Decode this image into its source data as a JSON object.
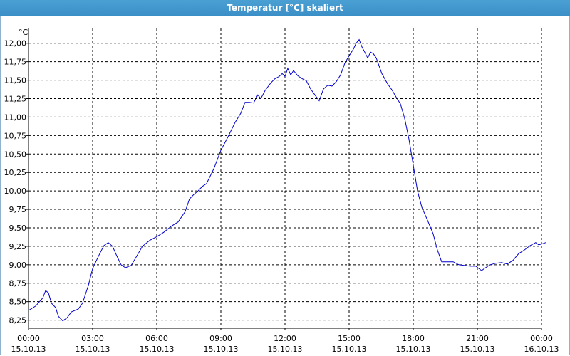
{
  "window": {
    "title": "Temperatur [°C] skaliert"
  },
  "chart_data": {
    "type": "line",
    "title": "Temperatur [°C] skaliert",
    "ylabel": "°C",
    "xlabel": "",
    "ylim": [
      8.14,
      12.2
    ],
    "grid": true,
    "y_ticks": [
      "12,00",
      "11,75",
      "11,50",
      "11,25",
      "11,00",
      "10,75",
      "10,50",
      "10,25",
      "10,00",
      "9,75",
      "9,50",
      "9,25",
      "9,00",
      "8,75",
      "8,50",
      "8,25"
    ],
    "y_tick_values": [
      12.0,
      11.75,
      11.5,
      11.25,
      11.0,
      10.75,
      10.5,
      10.25,
      10.0,
      9.75,
      9.5,
      9.25,
      9.0,
      8.75,
      8.5,
      8.25
    ],
    "x_ticks": [
      {
        "time": "00:00",
        "date": "15.10.13",
        "hours": 0
      },
      {
        "time": "03:00",
        "date": "15.10.13",
        "hours": 3
      },
      {
        "time": "06:00",
        "date": "15.10.13",
        "hours": 6
      },
      {
        "time": "09:00",
        "date": "15.10.13",
        "hours": 9
      },
      {
        "time": "12:00",
        "date": "15.10.13",
        "hours": 12
      },
      {
        "time": "15:00",
        "date": "15.10.13",
        "hours": 15
      },
      {
        "time": "18:00",
        "date": "15.10.13",
        "hours": 18
      },
      {
        "time": "21:00",
        "date": "15.10.13",
        "hours": 21
      },
      {
        "time": "00:00",
        "date": "16.10.13",
        "hours": 24
      }
    ],
    "xlim_hours": [
      0,
      24
    ],
    "series": [
      {
        "color": "#0000cc",
        "points": [
          [
            0.0,
            8.38
          ],
          [
            0.33,
            8.44
          ],
          [
            0.67,
            8.55
          ],
          [
            0.8,
            8.65
          ],
          [
            0.93,
            8.62
          ],
          [
            1.07,
            8.48
          ],
          [
            1.27,
            8.42
          ],
          [
            1.4,
            8.3
          ],
          [
            1.6,
            8.24
          ],
          [
            1.8,
            8.28
          ],
          [
            2.0,
            8.36
          ],
          [
            2.33,
            8.4
          ],
          [
            2.53,
            8.48
          ],
          [
            2.8,
            8.72
          ],
          [
            3.0,
            8.95
          ],
          [
            3.33,
            9.15
          ],
          [
            3.53,
            9.26
          ],
          [
            3.73,
            9.3
          ],
          [
            3.93,
            9.25
          ],
          [
            4.13,
            9.12
          ],
          [
            4.33,
            9.0
          ],
          [
            4.53,
            8.96
          ],
          [
            4.8,
            8.99
          ],
          [
            5.07,
            9.12
          ],
          [
            5.33,
            9.25
          ],
          [
            5.67,
            9.33
          ],
          [
            6.0,
            9.38
          ],
          [
            6.33,
            9.44
          ],
          [
            6.67,
            9.52
          ],
          [
            7.0,
            9.58
          ],
          [
            7.33,
            9.72
          ],
          [
            7.53,
            9.89
          ],
          [
            7.73,
            9.95
          ],
          [
            7.93,
            10.0
          ],
          [
            8.13,
            10.06
          ],
          [
            8.33,
            10.1
          ],
          [
            8.67,
            10.3
          ],
          [
            9.0,
            10.55
          ],
          [
            9.33,
            10.73
          ],
          [
            9.67,
            10.93
          ],
          [
            9.93,
            11.05
          ],
          [
            10.13,
            11.2
          ],
          [
            10.33,
            11.2
          ],
          [
            10.53,
            11.19
          ],
          [
            10.73,
            11.3
          ],
          [
            10.87,
            11.25
          ],
          [
            11.07,
            11.36
          ],
          [
            11.33,
            11.46
          ],
          [
            11.53,
            11.52
          ],
          [
            11.73,
            11.55
          ],
          [
            11.87,
            11.59
          ],
          [
            12.0,
            11.55
          ],
          [
            12.13,
            11.66
          ],
          [
            12.27,
            11.57
          ],
          [
            12.4,
            11.63
          ],
          [
            12.6,
            11.56
          ],
          [
            12.8,
            11.52
          ],
          [
            13.0,
            11.49
          ],
          [
            13.2,
            11.38
          ],
          [
            13.4,
            11.3
          ],
          [
            13.6,
            11.22
          ],
          [
            13.8,
            11.38
          ],
          [
            14.0,
            11.43
          ],
          [
            14.2,
            11.42
          ],
          [
            14.4,
            11.48
          ],
          [
            14.6,
            11.57
          ],
          [
            14.8,
            11.73
          ],
          [
            15.0,
            11.83
          ],
          [
            15.2,
            11.92
          ],
          [
            15.33,
            12.0
          ],
          [
            15.47,
            12.05
          ],
          [
            15.6,
            11.95
          ],
          [
            15.73,
            11.88
          ],
          [
            15.87,
            11.8
          ],
          [
            16.0,
            11.88
          ],
          [
            16.13,
            11.86
          ],
          [
            16.27,
            11.8
          ],
          [
            16.53,
            11.59
          ],
          [
            16.8,
            11.45
          ],
          [
            17.0,
            11.37
          ],
          [
            17.2,
            11.27
          ],
          [
            17.4,
            11.18
          ],
          [
            17.6,
            10.98
          ],
          [
            17.8,
            10.7
          ],
          [
            18.0,
            10.35
          ],
          [
            18.2,
            10.0
          ],
          [
            18.4,
            9.78
          ],
          [
            18.67,
            9.6
          ],
          [
            18.93,
            9.42
          ],
          [
            19.13,
            9.2
          ],
          [
            19.33,
            9.04
          ],
          [
            19.6,
            9.04
          ],
          [
            19.87,
            9.04
          ],
          [
            20.13,
            9.0
          ],
          [
            20.4,
            8.99
          ],
          [
            20.67,
            8.98
          ],
          [
            20.93,
            8.98
          ],
          [
            21.2,
            8.92
          ],
          [
            21.33,
            8.95
          ],
          [
            21.6,
            9.0
          ],
          [
            21.87,
            9.02
          ],
          [
            22.13,
            9.03
          ],
          [
            22.4,
            9.01
          ],
          [
            22.67,
            9.06
          ],
          [
            22.93,
            9.15
          ],
          [
            23.2,
            9.2
          ],
          [
            23.47,
            9.26
          ],
          [
            23.73,
            9.3
          ],
          [
            23.87,
            9.27
          ],
          [
            24.0,
            9.28
          ],
          [
            24.2,
            9.3
          ]
        ]
      }
    ]
  }
}
